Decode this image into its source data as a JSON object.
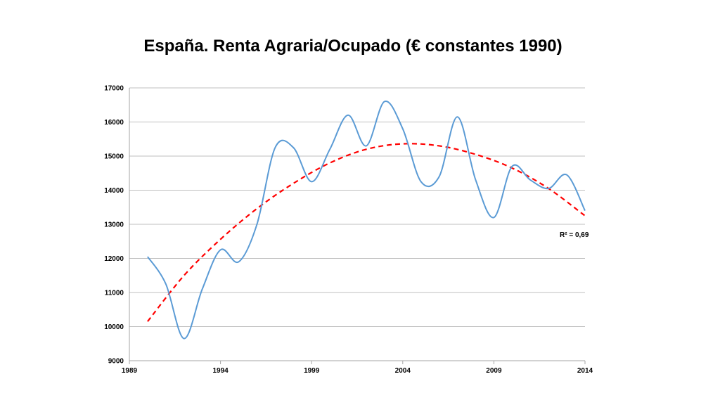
{
  "chart_data": {
    "type": "line",
    "title": "España. Renta Agraria/Ocupado (€ constantes 1990)",
    "xlabel": "",
    "ylabel": "",
    "xlim": [
      1989,
      2014
    ],
    "ylim": [
      9000,
      17000
    ],
    "x_ticks": [
      1989,
      1994,
      1999,
      2004,
      2009,
      2014
    ],
    "y_ticks": [
      9000,
      10000,
      11000,
      12000,
      13000,
      14000,
      15000,
      16000,
      17000
    ],
    "grid": true,
    "x": [
      1990,
      1991,
      1992,
      1993,
      1994,
      1995,
      1996,
      1997,
      1998,
      1999,
      2000,
      2001,
      2002,
      2003,
      2004,
      2005,
      2006,
      2007,
      2008,
      2009,
      2010,
      2011,
      2012,
      2013,
      2014
    ],
    "series": [
      {
        "values": [
          12050,
          11250,
          9650,
          11100,
          12250,
          11900,
          13000,
          15250,
          15250,
          14250,
          15200,
          16200,
          15300,
          16600,
          15800,
          14250,
          14400,
          16150,
          14300,
          13200,
          14700,
          14300,
          14050,
          14450,
          13400
        ],
        "color": "#5b9bd5",
        "smooth": true
      }
    ],
    "trendline": {
      "type": "polynomial",
      "order": 2,
      "color": "#ff0000",
      "style": "dashed",
      "x": [
        1990,
        1992,
        1994,
        1996,
        1998,
        2000,
        2002,
        2004,
        2006,
        2008,
        2010,
        2012,
        2014
      ],
      "values": [
        10150,
        11500,
        12560,
        13460,
        14200,
        14800,
        15200,
        15360,
        15300,
        15050,
        14650,
        14050,
        13250
      ],
      "r2_label": "R² = 0,69"
    }
  }
}
